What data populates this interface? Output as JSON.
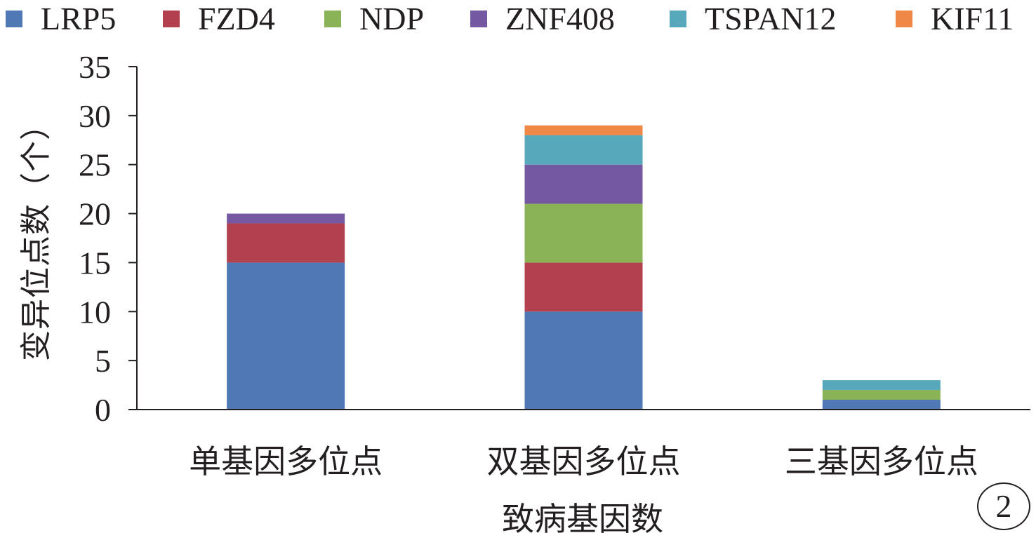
{
  "chart_data": {
    "type": "bar",
    "stacked": true,
    "categories": [
      "单基因多位点",
      "双基因多位点",
      "三基因多位点"
    ],
    "series": [
      {
        "name": "LRP5",
        "color": "#4f78b5",
        "values": [
          15,
          10,
          1
        ]
      },
      {
        "name": "FZD4",
        "color": "#b3404e",
        "values": [
          4,
          5,
          0
        ]
      },
      {
        "name": "NDP",
        "color": "#89b356",
        "values": [
          0,
          6,
          1
        ]
      },
      {
        "name": "ZNF408",
        "color": "#7459a2",
        "values": [
          1,
          4,
          0
        ]
      },
      {
        "name": "TSPAN12",
        "color": "#56a8ba",
        "values": [
          0,
          3,
          1
        ]
      },
      {
        "name": "KIF11",
        "color": "#ef8747",
        "values": [
          0,
          1,
          0
        ]
      }
    ],
    "xlabel": "致病基因数",
    "ylabel": "变异位点数（个）",
    "ylim": [
      0,
      35
    ],
    "yticks": [
      0,
      5,
      10,
      15,
      20,
      25,
      30,
      35
    ],
    "grid": false,
    "legend_position": "top"
  },
  "panel_label": "2"
}
